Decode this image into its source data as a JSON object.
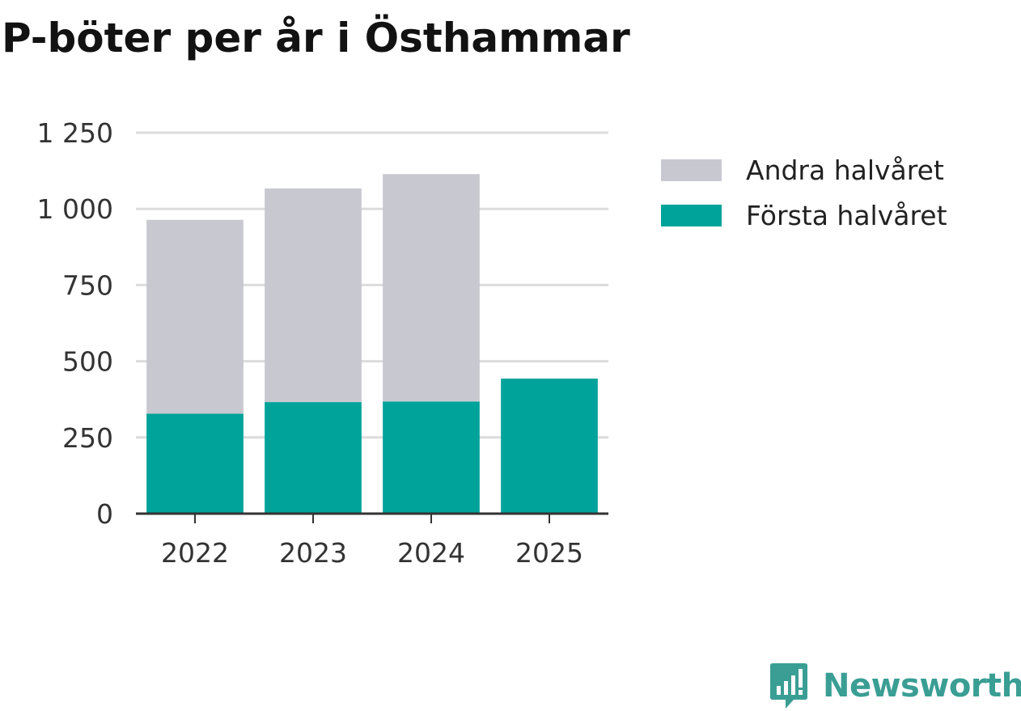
{
  "title": "P-böter per år i Östhammar",
  "colors": {
    "first_half": "#00a39a",
    "second_half": "#c8c8d0",
    "gridline": "#dcdcdc",
    "axis": "#333333",
    "brand": "#3a9e94"
  },
  "chart_data": {
    "type": "bar",
    "stacked": true,
    "title": "P-böter per år i Östhammar",
    "xlabel": "",
    "ylabel": "",
    "categories": [
      "2022",
      "2023",
      "2024",
      "2025"
    ],
    "series": [
      {
        "name": "Första halvåret",
        "values": [
          328,
          366,
          368,
          443
        ]
      },
      {
        "name": "Andra halvåret",
        "values": [
          636,
          701,
          746,
          0
        ]
      }
    ],
    "ylim": [
      0,
      1250
    ],
    "yticks": [
      0,
      250,
      500,
      750,
      1000,
      1250
    ],
    "ytick_labels": [
      "0",
      "250",
      "500",
      "750",
      "1 000",
      "1 250"
    ],
    "grid": true,
    "legend_position": "right"
  },
  "legend": {
    "items": [
      {
        "label": "Andra halvåret",
        "color": "#c8c8d0"
      },
      {
        "label": "Första halvåret",
        "color": "#00a39a"
      }
    ]
  },
  "brand": {
    "name": "Newsworthy",
    "icon": "newsworthy-logo-icon"
  }
}
